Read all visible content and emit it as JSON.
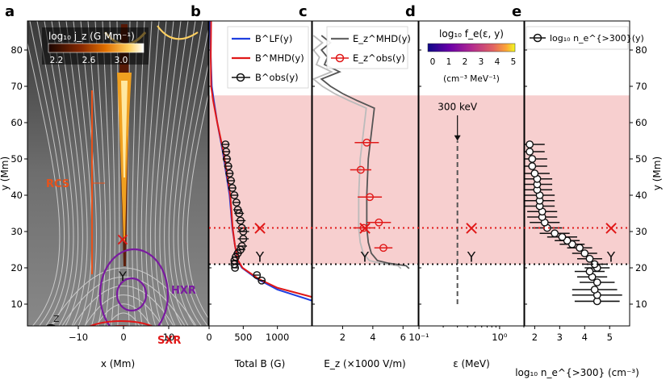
{
  "figure": {
    "shared_y": {
      "label": "y (Mm)",
      "range": [
        4,
        88
      ],
      "ticks": [
        10,
        20,
        30,
        40,
        50,
        60,
        70,
        80
      ]
    },
    "markers": {
      "x_y": 31,
      "y_y": 21
    },
    "colors": {
      "lf": "#1f3fe0",
      "mhd": "#e01818",
      "obs": "#111111",
      "band": "#f7cfcf",
      "purple": "#7a1aa0",
      "orange": "#e8521a"
    },
    "panels": {
      "a": {
        "letter": "a",
        "xlabel": "x (Mm)",
        "xticks": [
          "−10",
          "0",
          "10"
        ],
        "colorbar_title": "log₁₀ j_z (G Mm⁻¹)",
        "colorbar_ticks": [
          "2.2",
          "2.6",
          "3.0"
        ],
        "label_rcs": "RCS",
        "label_hxr": "HXR",
        "label_sxr": "SXR",
        "label_z": "Z",
        "x_mark": "×",
        "y_mark": "Y"
      },
      "b": {
        "letter": "b",
        "xlabel": "Total B (G)",
        "xticks": [
          "0",
          "500",
          "1000"
        ],
        "legend": [
          "B^LF(y)",
          "B^MHD(y)",
          "B^obs(y)"
        ]
      },
      "c": {
        "letter": "c",
        "xlabel": "E_z (×1000 V/m)",
        "xticks": [
          "2",
          "4",
          "6"
        ],
        "legend": [
          "E_z^MHD(y)",
          "E_z^obs(y)"
        ]
      },
      "d": {
        "letter": "d",
        "xlabel": "ε (MeV)",
        "xticks": [
          "10⁻¹",
          "10⁰"
        ],
        "colorbar_title": "log₁₀ f_e(ε, y)",
        "colorbar_ticks": [
          "0",
          "1",
          "2",
          "3",
          "4",
          "5"
        ],
        "colorbar_units": "(cm⁻³ MeV⁻¹)",
        "annotation": "300 keV"
      },
      "e": {
        "letter": "e",
        "xlabel": "log₁₀ n_e^{>300} (cm⁻³)",
        "xticks": [
          "2",
          "3",
          "4",
          "5"
        ],
        "legend": [
          "log₁₀ n_e^{>300}(y)"
        ]
      }
    }
  },
  "chart_data": [
    {
      "type": "line",
      "panel": "b",
      "title": "Total B",
      "xlabel": "Total B (G)",
      "ylabel": "y (Mm)",
      "xlim": [
        0,
        1500
      ],
      "ylim": [
        4,
        88
      ],
      "series": [
        {
          "name": "B^LF(y)",
          "x": [
            1500,
            1000,
            700,
            480,
            420,
            380,
            340,
            300,
            200,
            120,
            70,
            40,
            25,
            15
          ],
          "y": [
            11,
            14,
            17,
            20,
            22,
            26,
            31,
            40,
            52,
            60,
            66,
            70,
            78,
            88
          ]
        },
        {
          "name": "B^MHD(y)",
          "x": [
            1500,
            1000,
            720,
            490,
            425,
            380,
            345,
            310,
            210,
            120,
            60,
            30,
            25,
            30
          ],
          "y": [
            12,
            14.5,
            17,
            20,
            22,
            26,
            31,
            40,
            52,
            60,
            66,
            70,
            78,
            88
          ]
        },
        {
          "name": "B^obs(y)",
          "x": [
            700,
            770,
            380,
            370,
            370,
            390,
            420,
            460,
            480,
            500,
            500,
            480,
            460,
            440,
            420,
            400,
            370,
            340,
            320,
            300,
            280,
            260,
            250,
            240
          ],
          "y": [
            18,
            16.5,
            20,
            21,
            22,
            23,
            24,
            25,
            26,
            28,
            30,
            31,
            33,
            35,
            36,
            38,
            40,
            42,
            44,
            46,
            48,
            50,
            52,
            54
          ],
          "err": [
            40,
            40,
            50,
            50,
            55,
            60,
            65,
            70,
            75,
            80,
            85,
            80,
            75,
            70,
            65,
            60,
            60,
            60,
            60,
            60,
            60,
            60,
            60,
            60
          ]
        }
      ]
    },
    {
      "type": "line",
      "panel": "c",
      "title": "E_z",
      "xlabel": "E_z (×1000 V/m)",
      "ylabel": "y (Mm)",
      "xlim": [
        0,
        7
      ],
      "ylim": [
        4,
        88
      ],
      "series": [
        {
          "name": "E_z^MHD(y)",
          "x": [
            6.4,
            6.2,
            5.0,
            4.3,
            3.9,
            3.7,
            3.6,
            3.6,
            3.7,
            3.9,
            4.1,
            3.0,
            2.0,
            1.2,
            0.6,
            1.8,
            0.8,
            1.0,
            0.6,
            1.2,
            0.6
          ],
          "y": [
            19.8,
            20.6,
            21.3,
            22,
            24,
            27,
            31,
            40,
            50,
            57,
            64,
            66,
            68,
            70,
            72,
            74,
            76,
            78,
            80,
            82,
            84
          ]
        },
        {
          "name": "E_z^obs(y)",
          "x": [
            4.7,
            4.4,
            3.4,
            3.8,
            3.2,
            3.6
          ],
          "y": [
            25.5,
            32.5,
            31,
            39.5,
            47,
            54.5
          ],
          "err": [
            0.6,
            0.8,
            0.7,
            0.8,
            0.7,
            0.8
          ]
        }
      ]
    },
    {
      "type": "heatmap",
      "panel": "d",
      "title": "log10 f_e(ε, y)",
      "xlabel": "ε (MeV)",
      "ylabel": "y (Mm)",
      "xlim": [
        0.1,
        2.0
      ],
      "x_scale": "log",
      "ylim": [
        4,
        88
      ],
      "y_range": [
        10,
        55
      ],
      "vmin": 0,
      "vmax": 5,
      "annotation": {
        "text": "300 keV",
        "energy_mev": 0.3
      }
    },
    {
      "type": "scatter",
      "panel": "e",
      "title": "log10 n_e^{>300}(y)",
      "xlabel": "log₁₀ n_e^{>300} (cm⁻³)",
      "ylabel": "y (Mm)",
      "xlim": [
        1.6,
        5.8
      ],
      "ylim": [
        4,
        88
      ],
      "series": [
        {
          "name": "log10 n_e^{>300}(y)",
          "x": [
            4.5,
            4.5,
            4.4,
            4.5,
            4.3,
            4.2,
            4.5,
            4.4,
            4.2,
            4.0,
            3.8,
            3.5,
            3.3,
            3.1,
            2.8,
            2.5,
            2.4,
            2.3,
            2.3,
            2.2,
            2.2,
            2.2,
            2.1,
            2.1,
            2.1,
            2.0,
            1.9,
            1.9,
            1.8,
            1.8
          ],
          "y": [
            10.8,
            12.5,
            14,
            16,
            17.5,
            19,
            20,
            21,
            22.5,
            24,
            25.5,
            26.5,
            27.5,
            28.5,
            29.5,
            31,
            32.5,
            34,
            35.5,
            37,
            38.5,
            40,
            41.5,
            43,
            44.5,
            46,
            48,
            50,
            52,
            54
          ],
          "err": [
            0.9,
            1.0,
            0.9,
            0.7,
            0.6,
            0.6,
            0.5,
            0.5,
            0.5,
            0.5,
            0.5,
            0.5,
            0.5,
            0.6,
            0.6,
            0.6,
            0.6,
            0.6,
            0.6,
            0.6,
            0.6,
            0.6,
            0.6,
            0.6,
            0.6,
            0.6,
            0.6,
            0.6,
            0.6,
            0.6
          ]
        }
      ]
    }
  ]
}
